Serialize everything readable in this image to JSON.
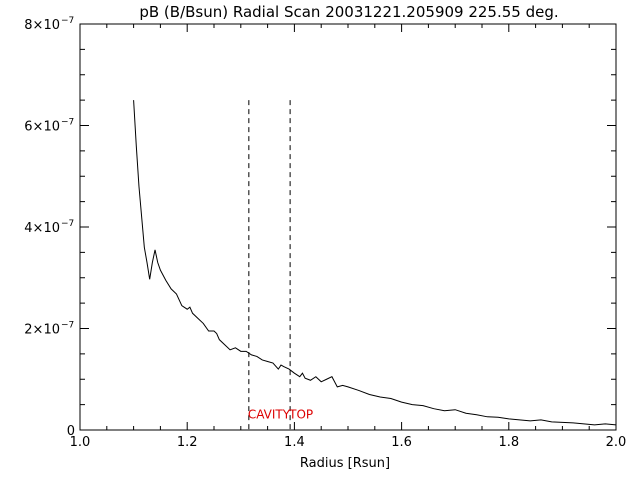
{
  "chart_data": {
    "type": "line",
    "title": "pB (B/Bsun) Radial Scan 20031221.205909 225.55 deg.",
    "xlabel": "Radius [Rsun]",
    "ylabel": "",
    "xlim": [
      1.0,
      2.0
    ],
    "ylim": [
      0,
      8e-07
    ],
    "x_ticks": [
      {
        "value": 1.0,
        "label": "1.0"
      },
      {
        "value": 1.2,
        "label": "1.2"
      },
      {
        "value": 1.4,
        "label": "1.4"
      },
      {
        "value": 1.6,
        "label": "1.6"
      },
      {
        "value": 1.8,
        "label": "1.8"
      },
      {
        "value": 2.0,
        "label": "2.0"
      }
    ],
    "y_ticks": [
      {
        "value": 0,
        "mantissa": "0",
        "exponent": ""
      },
      {
        "value": 2e-07,
        "mantissa": "2×10",
        "exponent": "−7"
      },
      {
        "value": 4e-07,
        "mantissa": "4×10",
        "exponent": "−7"
      },
      {
        "value": 6e-07,
        "mantissa": "6×10",
        "exponent": "−7"
      },
      {
        "value": 8e-07,
        "mantissa": "8×10",
        "exponent": "−7"
      }
    ],
    "grid": false,
    "series": [
      {
        "color": "#000000",
        "points": [
          [
            1.1,
            6.5e-07
          ],
          [
            1.105,
            5.6e-07
          ],
          [
            1.11,
            4.8e-07
          ],
          [
            1.115,
            4.2e-07
          ],
          [
            1.12,
            3.6e-07
          ],
          [
            1.125,
            3.3e-07
          ],
          [
            1.13,
            2.97e-07
          ],
          [
            1.135,
            3.3e-07
          ],
          [
            1.14,
            3.55e-07
          ],
          [
            1.145,
            3.3e-07
          ],
          [
            1.15,
            3.15e-07
          ],
          [
            1.16,
            2.95e-07
          ],
          [
            1.17,
            2.78e-07
          ],
          [
            1.18,
            2.68e-07
          ],
          [
            1.19,
            2.45e-07
          ],
          [
            1.2,
            2.38e-07
          ],
          [
            1.205,
            2.42e-07
          ],
          [
            1.21,
            2.3e-07
          ],
          [
            1.22,
            2.2e-07
          ],
          [
            1.23,
            2.1e-07
          ],
          [
            1.24,
            1.95e-07
          ],
          [
            1.25,
            1.95e-07
          ],
          [
            1.255,
            1.9e-07
          ],
          [
            1.26,
            1.78e-07
          ],
          [
            1.27,
            1.68e-07
          ],
          [
            1.28,
            1.58e-07
          ],
          [
            1.29,
            1.62e-07
          ],
          [
            1.3,
            1.55e-07
          ],
          [
            1.31,
            1.55e-07
          ],
          [
            1.32,
            1.48e-07
          ],
          [
            1.33,
            1.45e-07
          ],
          [
            1.34,
            1.38e-07
          ],
          [
            1.35,
            1.35e-07
          ],
          [
            1.36,
            1.32e-07
          ],
          [
            1.37,
            1.2e-07
          ],
          [
            1.375,
            1.28e-07
          ],
          [
            1.38,
            1.25e-07
          ],
          [
            1.39,
            1.2e-07
          ],
          [
            1.4,
            1.12e-07
          ],
          [
            1.41,
            1.05e-07
          ],
          [
            1.415,
            1.12e-07
          ],
          [
            1.42,
            1.02e-07
          ],
          [
            1.43,
            9.8e-08
          ],
          [
            1.44,
            1.05e-07
          ],
          [
            1.45,
            9.5e-08
          ],
          [
            1.46,
            1e-07
          ],
          [
            1.47,
            1.05e-07
          ],
          [
            1.48,
            8.5e-08
          ],
          [
            1.49,
            8.8e-08
          ],
          [
            1.5,
            8.5e-08
          ],
          [
            1.52,
            7.8e-08
          ],
          [
            1.54,
            7e-08
          ],
          [
            1.56,
            6.5e-08
          ],
          [
            1.58,
            6.2e-08
          ],
          [
            1.6,
            5.5e-08
          ],
          [
            1.62,
            5e-08
          ],
          [
            1.64,
            4.8e-08
          ],
          [
            1.66,
            4.2e-08
          ],
          [
            1.68,
            3.8e-08
          ],
          [
            1.7,
            4e-08
          ],
          [
            1.72,
            3.3e-08
          ],
          [
            1.74,
            3e-08
          ],
          [
            1.76,
            2.6e-08
          ],
          [
            1.78,
            2.5e-08
          ],
          [
            1.8,
            2.2e-08
          ],
          [
            1.82,
            2e-08
          ],
          [
            1.84,
            1.8e-08
          ],
          [
            1.86,
            2e-08
          ],
          [
            1.88,
            1.6e-08
          ],
          [
            1.9,
            1.5e-08
          ],
          [
            1.92,
            1.4e-08
          ],
          [
            1.94,
            1.2e-08
          ],
          [
            1.96,
            1e-08
          ],
          [
            1.98,
            1.2e-08
          ],
          [
            2.0,
            1e-08
          ]
        ]
      }
    ],
    "markers": [
      {
        "x": 1.315,
        "y_top": 6.5e-07,
        "style": "dashed"
      },
      {
        "x": 1.392,
        "y_top": 6.5e-07,
        "style": "dashed"
      }
    ],
    "annotations": [
      {
        "text": "CAVITY",
        "x": 1.315,
        "y": 1.5e-08,
        "color": "#dd0000"
      },
      {
        "text": "TOP",
        "x": 1.392,
        "y": 1.5e-08,
        "color": "#dd0000"
      }
    ]
  }
}
